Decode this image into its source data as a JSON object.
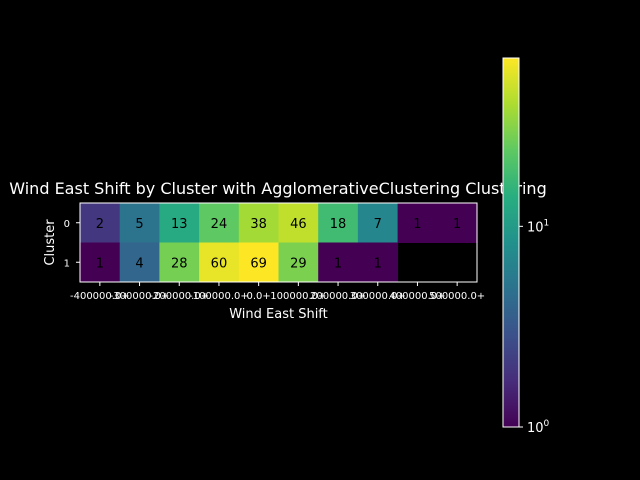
{
  "chart_data": {
    "type": "heatmap",
    "title": "Wind East Shift by Cluster with AgglomerativeClustering Clustering",
    "xlabel": "Wind East Shift",
    "ylabel": "Cluster",
    "x_tick_labels": [
      "-400000.0+",
      "-300000.0+",
      "-200000.0+",
      "-100000.0+",
      "0.0+",
      "100000.0+",
      "200000.0+",
      "300000.0+",
      "400000.0+",
      "500000.0+"
    ],
    "y_tick_labels": [
      "0",
      "1"
    ],
    "rows": [
      {
        "cluster": "0",
        "values": [
          2,
          5,
          13,
          24,
          38,
          46,
          18,
          7,
          1,
          1
        ],
        "labels": [
          "2",
          "5",
          "13",
          "24",
          "38",
          "46",
          "18",
          "7",
          "1",
          "1"
        ]
      },
      {
        "cluster": "1",
        "values": [
          1,
          4,
          28,
          60,
          69,
          29,
          1,
          1,
          null,
          null
        ],
        "labels": [
          "1",
          "4",
          "28",
          "60",
          "69",
          "29",
          "1",
          "1",
          "",
          ""
        ]
      }
    ],
    "colorbar": {
      "scale": "log",
      "colormap": "viridis",
      "min": 1,
      "max": 69,
      "ticks": [
        {
          "base": "10",
          "exp": "0"
        },
        {
          "base": "10",
          "exp": "1"
        }
      ]
    },
    "grid": false
  }
}
